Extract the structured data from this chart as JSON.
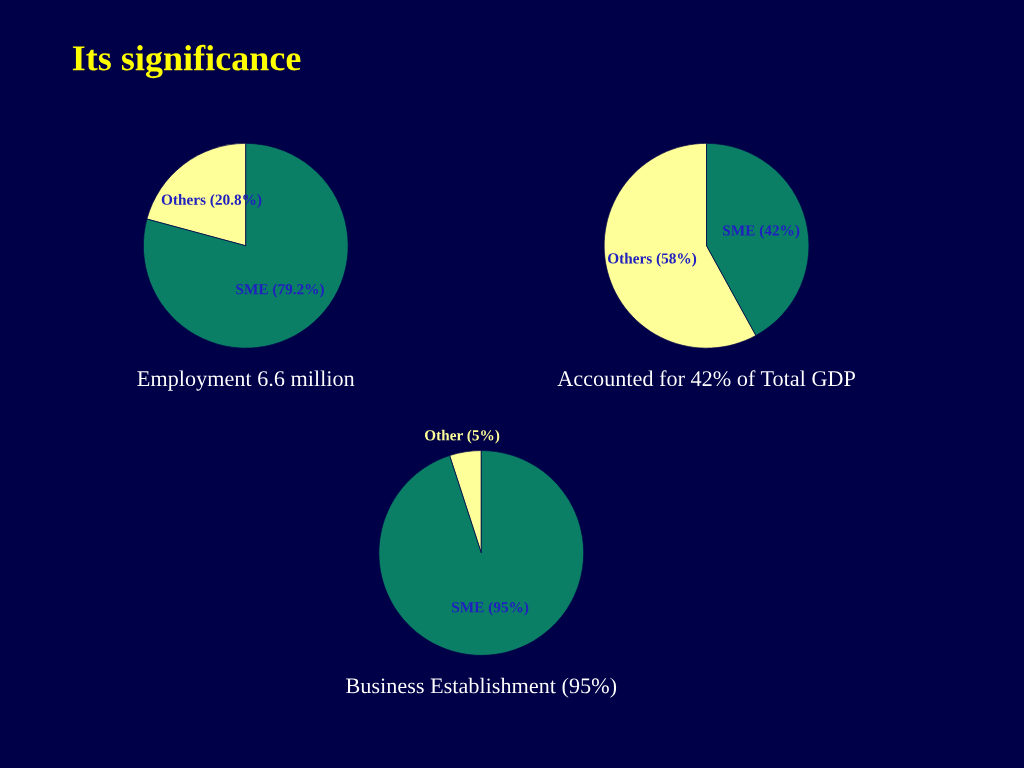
{
  "chart_data": [
    {
      "type": "other",
      "title": "Its significance"
    },
    {
      "type": "pie",
      "categories": [
        "Others (20.8%)",
        "SME (79.2%)"
      ],
      "values": [
        20.8,
        79.2
      ],
      "colors": [
        "#ffff99",
        "#0b7f66"
      ],
      "xlabel": "Employment 6.6 million"
    },
    {
      "type": "pie",
      "categories": [
        "Others (58%)",
        "SME (42%)"
      ],
      "values": [
        58,
        42
      ],
      "colors": [
        "#ffff99",
        "#0b7f66"
      ],
      "xlabel": "Accounted for 42% of Total GDP"
    },
    {
      "type": "pie",
      "categories": [
        "Other (5%)",
        "SME (95%)"
      ],
      "values": [
        5,
        95
      ],
      "colors": [
        "#ffff99",
        "#0b7f66"
      ],
      "xlabel": "Business Establishment (95%)"
    }
  ]
}
